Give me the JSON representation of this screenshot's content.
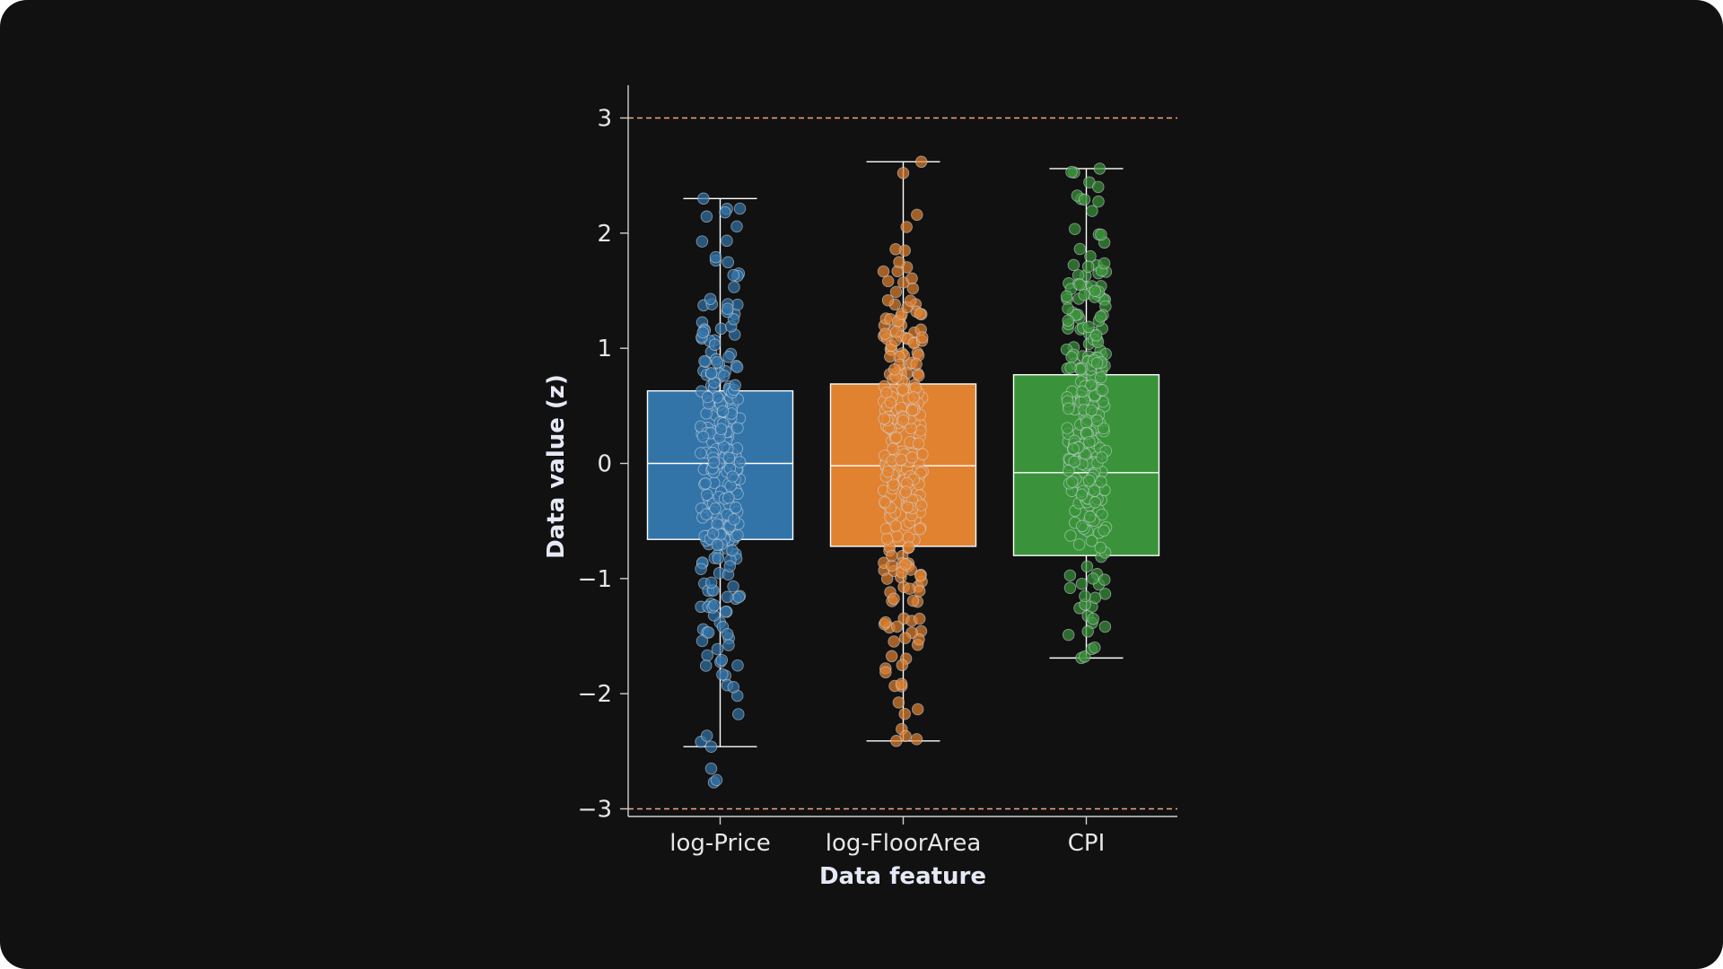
{
  "chart_data": {
    "type": "box",
    "xlabel": "Data feature",
    "ylabel": "Data value (z)",
    "ylim": [
      -3.06,
      3.3
    ],
    "yticks": [
      3,
      2,
      1,
      0,
      -1,
      -2,
      -3
    ],
    "ytick_labels": [
      "3",
      "2",
      "1",
      "0",
      "−1",
      "−2",
      "−3"
    ],
    "reference_lines": [
      3,
      -3
    ],
    "reference_line_color": "#f4a582",
    "grid": false,
    "boxes": [
      {
        "category": "log-Price",
        "color": "#3274a8",
        "whisker_low": -2.46,
        "q1": -0.66,
        "median": 0.0,
        "q3": 0.63,
        "whisker_high": 2.3,
        "outliers": [
          -2.65,
          -2.77,
          -2.75
        ]
      },
      {
        "category": "log-FloorArea",
        "color": "#e08230",
        "whisker_low": -2.41,
        "q1": -0.72,
        "median": -0.02,
        "q3": 0.69,
        "whisker_high": 2.62,
        "outliers": []
      },
      {
        "category": "CPI",
        "color": "#3a933a",
        "whisker_low": -1.69,
        "q1": -0.8,
        "median": -0.08,
        "q3": 0.77,
        "whisker_high": 2.56,
        "outliers": []
      }
    ]
  }
}
